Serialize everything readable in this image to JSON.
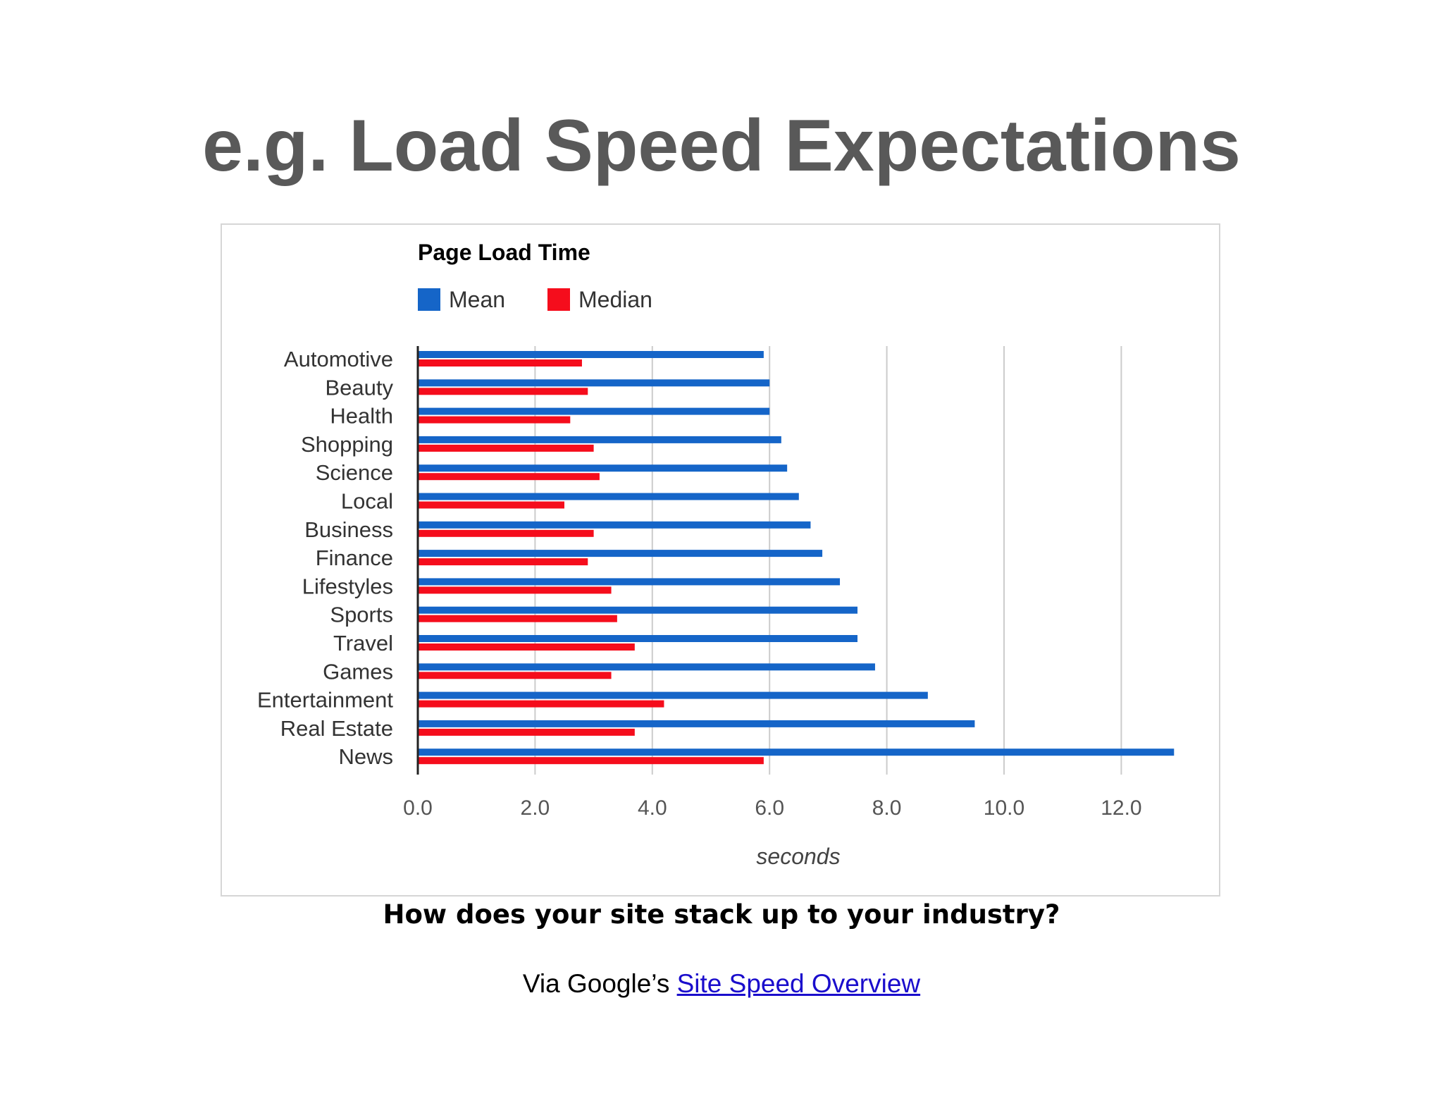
{
  "slide": {
    "title": "e.g. Load Speed Expectations",
    "caption": "How does your site stack up to your industry?",
    "source_prefix": "Via Google’s",
    "source_link": "Site Speed Overview"
  },
  "colors": {
    "mean": "#1565c8",
    "median": "#f50d1c",
    "title_text": "#595959",
    "link": "#1a0dcc"
  },
  "chart_data": {
    "type": "bar",
    "orientation": "horizontal",
    "title": "Page Load Time",
    "xlabel": "seconds",
    "ylabel": "",
    "xlim": [
      0,
      13
    ],
    "xticks": [
      "0.0",
      "2.0",
      "4.0",
      "6.0",
      "8.0",
      "10.0",
      "12.0"
    ],
    "grid": true,
    "legend_position": "top-left",
    "categories": [
      "Automotive",
      "Beauty",
      "Health",
      "Shopping",
      "Science",
      "Local",
      "Business",
      "Finance",
      "Lifestyles",
      "Sports",
      "Travel",
      "Games",
      "Entertainment",
      "Real Estate",
      "News"
    ],
    "series": [
      {
        "name": "Mean",
        "values": [
          5.9,
          6.0,
          6.0,
          6.2,
          6.3,
          6.5,
          6.7,
          6.9,
          7.2,
          7.5,
          7.5,
          7.8,
          8.7,
          9.5,
          12.9
        ]
      },
      {
        "name": "Median",
        "values": [
          2.8,
          2.9,
          2.6,
          3.0,
          3.1,
          2.5,
          3.0,
          2.9,
          3.3,
          3.4,
          3.7,
          3.3,
          4.2,
          3.7,
          5.9
        ]
      }
    ]
  }
}
